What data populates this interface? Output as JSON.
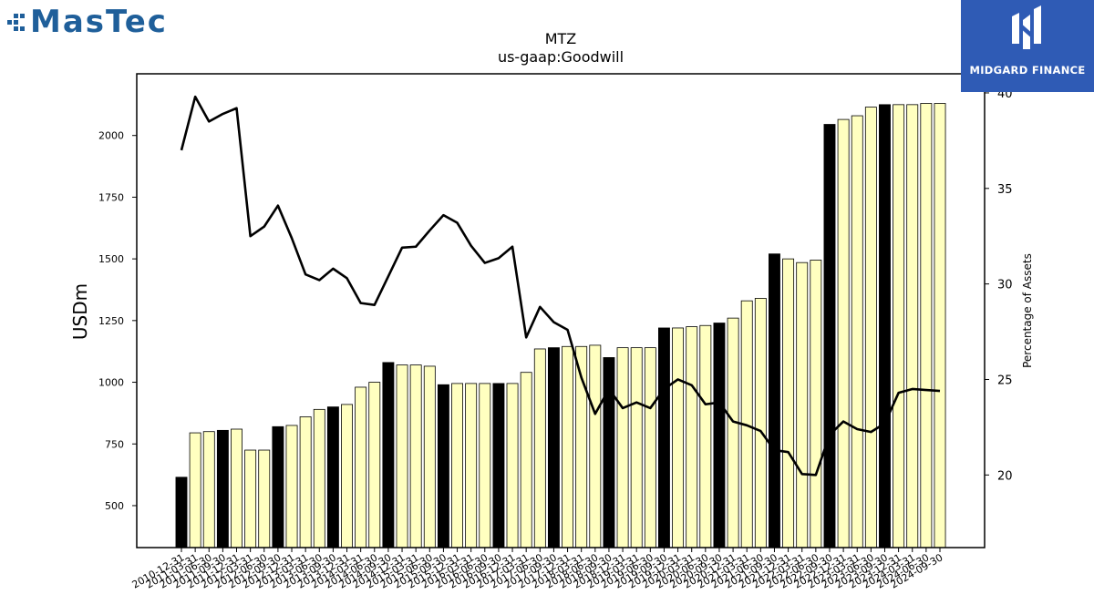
{
  "logos": {
    "left_text": "MasTec",
    "right_text": "MIDGARD FINANCE"
  },
  "colors": {
    "bar_default": "#ffffc0",
    "bar_highlight": "#000000",
    "line": "#000000",
    "logo_left": "#1f5f9a",
    "logo_right_bg": "#2f5bb5"
  },
  "chart_data": {
    "type": "bar",
    "title": "MTZ",
    "subtitle": "us-gaap:Goodwill",
    "ylabel": "USDm",
    "y2label": "Percentage of Assets",
    "ylim": [
      330,
      2250
    ],
    "y2lim": [
      16.2,
      41.0
    ],
    "yticks": [
      500,
      750,
      1000,
      1250,
      1500,
      1750,
      2000
    ],
    "y2ticks": [
      20,
      25,
      30,
      35,
      40
    ],
    "grid": false,
    "legend": "none",
    "categories": [
      "2010-12-31",
      "2011-03-31",
      "2011-06-30",
      "2011-09-30",
      "2011-12-31",
      "2012-03-31",
      "2012-06-30",
      "2012-09-30",
      "2012-12-31",
      "2013-03-31",
      "2013-06-30",
      "2013-09-30",
      "2013-12-31",
      "2014-03-31",
      "2014-06-30",
      "2014-09-30",
      "2014-12-31",
      "2015-03-31",
      "2015-06-30",
      "2015-09-30",
      "2015-12-31",
      "2016-03-31",
      "2016-06-30",
      "2016-09-30",
      "2016-12-31",
      "2017-03-31",
      "2017-06-30",
      "2017-09-30",
      "2017-12-31",
      "2018-03-31",
      "2018-06-30",
      "2018-09-30",
      "2018-12-31",
      "2019-03-31",
      "2019-06-30",
      "2019-09-30",
      "2019-12-31",
      "2020-03-31",
      "2020-06-30",
      "2020-09-30",
      "2020-12-31",
      "2021-03-31",
      "2021-06-30",
      "2021-09-30",
      "2021-12-31",
      "2022-03-31",
      "2022-06-30",
      "2022-09-30",
      "2022-12-31",
      "2023-03-31",
      "2023-06-30",
      "2023-09-30",
      "2023-12-31",
      "2024-03-31",
      "2024-06-30",
      "2024-09-30"
    ],
    "tick_labels": [
      "2010-12-31",
      "2011-03-31",
      "2011-06-30",
      "2011-09-30",
      "2011-12-31",
      "2012-03-31",
      "2012-06-30",
      "2012-09-30",
      "2012-12-31",
      "2013-03-31",
      "2013-06-30",
      "2013-09-30",
      "2013-12-31",
      "2014-03-31",
      "2014-06-30",
      "2014-09-30",
      "2014-12-31",
      "2015-03-31",
      "2015-06-30",
      "2015-09-30",
      "2015-12-31",
      "2016-03-31",
      "2016-06-30",
      "2016-09-30",
      "2016-12-31",
      "2017-03-31",
      "2017-06-30",
      "2017-09-30",
      "2017-12-31",
      "2018-03-31",
      "2018-06-30",
      "2018-09-30",
      "2018-12-31",
      "2019-03-31",
      "2019-06-30",
      "2019-09-30",
      "2019-12-31",
      "2020-03-31",
      "2020-06-30",
      "2020-09-30",
      "2020-12-31",
      "2021-03-31",
      "2021-06-30",
      "2021-09-30",
      "2021-12-31",
      "2022-03-31",
      "2022-06-30",
      "2022-09-30",
      "2022-12-31",
      "2023-03-31",
      "2023-06-30",
      "2023-09-30",
      "2023-12-31",
      "2024-03-31",
      "2024-06-30",
      "2024-09-30"
    ],
    "highlight": [
      true,
      false,
      false,
      true,
      false,
      false,
      false,
      true,
      false,
      false,
      false,
      true,
      false,
      false,
      false,
      true,
      false,
      false,
      false,
      true,
      false,
      false,
      false,
      true,
      false,
      false,
      false,
      true,
      false,
      false,
      false,
      true,
      false,
      false,
      false,
      true,
      false,
      false,
      false,
      true,
      false,
      false,
      false,
      true,
      false,
      false,
      false,
      true,
      false,
      false,
      false,
      true,
      false,
      false,
      false,
      false
    ],
    "series": [
      {
        "values": [
          615,
          795,
          800,
          805,
          810,
          725,
          725,
          820,
          825,
          860,
          890,
          900,
          910,
          980,
          1000,
          1080,
          1070,
          1070,
          1065,
          990,
          995,
          995,
          995,
          995,
          995,
          1040,
          1135,
          1140,
          1145,
          1145,
          1150,
          1100,
          1140,
          1140,
          1140,
          1220,
          1220,
          1225,
          1230,
          1240,
          1260,
          1330,
          1340,
          1520,
          1500,
          1485,
          1495,
          2045,
          2065,
          2080,
          2115,
          2125,
          2125,
          2125,
          2130,
          2130
        ]
      },
      {
        "axis": "right",
        "values": [
          37.0,
          39.8,
          38.5,
          38.9,
          39.2,
          32.5,
          33.0,
          34.1,
          32.4,
          30.5,
          30.2,
          30.8,
          30.3,
          29.0,
          28.9,
          30.4,
          31.9,
          31.95,
          32.8,
          33.6,
          33.2,
          32.0,
          31.1,
          31.35,
          31.95,
          27.2,
          28.8,
          28.0,
          27.6,
          25.1,
          23.2,
          24.5,
          23.5,
          23.8,
          23.5,
          24.5,
          25.0,
          24.7,
          23.7,
          23.8,
          22.8,
          22.6,
          22.3,
          21.3,
          21.2,
          20.05,
          20.0,
          22.1,
          22.8,
          22.4,
          22.25,
          22.7,
          24.3,
          24.5,
          24.45,
          24.4
        ]
      }
    ]
  }
}
